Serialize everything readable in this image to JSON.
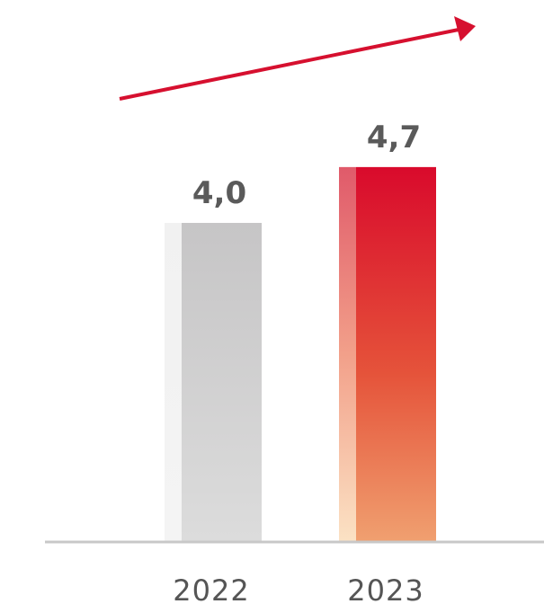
{
  "chart_data": {
    "type": "bar",
    "categories": [
      "2022",
      "2023"
    ],
    "values": [
      4.0,
      4.7
    ],
    "value_labels": [
      "4,0",
      "4,7"
    ],
    "title": "",
    "xlabel": "",
    "ylabel": "",
    "ylim": [
      0,
      5.5
    ],
    "grid": false,
    "legend": "none",
    "trend_arrow": "up",
    "colors": {
      "bar_2022_top": "#c6c5c6",
      "bar_2022_bottom": "#dcdcdc",
      "bar_2022_side": "#eeeeee",
      "bar_2023_top": "#d90a2c",
      "bar_2023_mid": "#e5533a",
      "bar_2023_bottom": "#f0a070",
      "arrow": "#d6102f",
      "baseline": "#c8c8c8"
    }
  }
}
